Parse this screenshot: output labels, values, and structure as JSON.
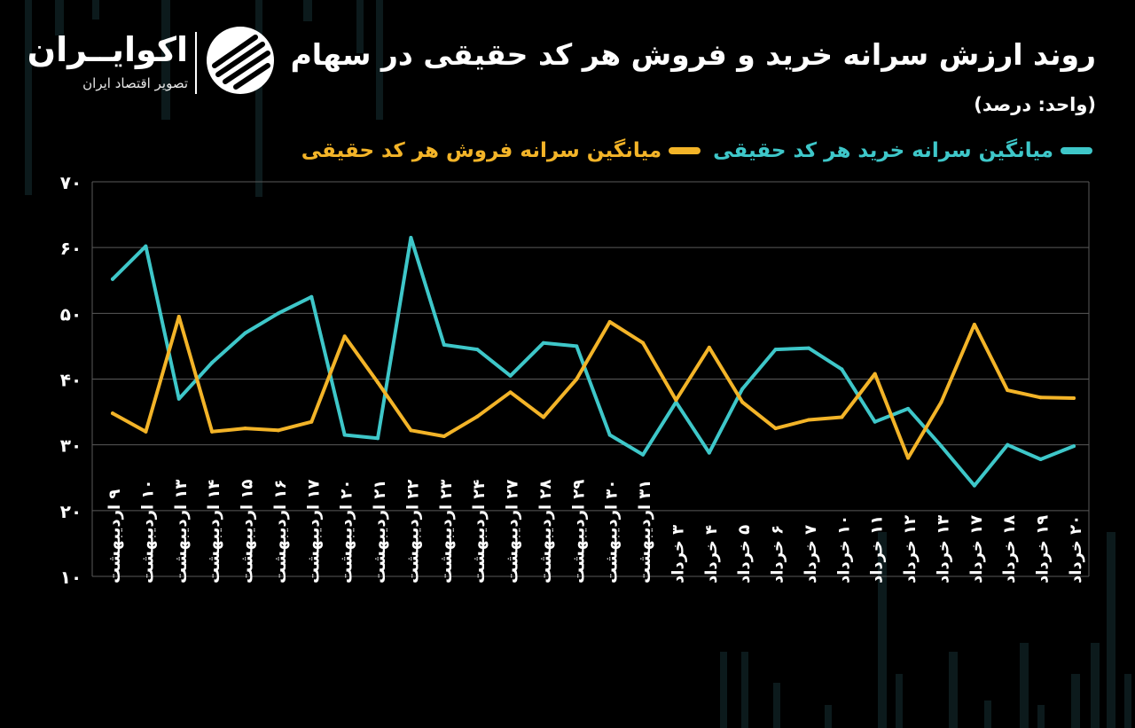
{
  "header": {
    "title": "روند ارزش سرانه خرید و فروش هر کد حقیقی در سهام",
    "unit": "(واحد: درصد)"
  },
  "brand": {
    "name": "اکوایــران",
    "tagline": "تصویر اقتصاد ایران",
    "logo_icon": "ecoiran-logo-icon"
  },
  "colors": {
    "background": "#000000",
    "buy": "#3ec7c9",
    "sell": "#f3b428",
    "grid": "#5a5a5a",
    "text": "#ffffff"
  },
  "legend": {
    "buy_label": "میانگین سرانه خرید هر کد حقیقی",
    "sell_label": "میانگین سرانه فروش هر کد حقیقی"
  },
  "chart_data": {
    "type": "line",
    "title": "روند ارزش سرانه خرید و فروش هر کد حقیقی در سهام",
    "ylabel": "",
    "xlabel": "",
    "ylim": [
      10,
      70
    ],
    "yticks": [
      "۱۰",
      "۲۰",
      "۳۰",
      "۴۰",
      "۵۰",
      "۶۰",
      "۷۰"
    ],
    "grid": true,
    "legend_position": "top",
    "categories": [
      "۹ اردیبهشت",
      "۱۰ اردیبهشت",
      "۱۳ اردیبهشت",
      "۱۴ اردیبهشت",
      "۱۵ اردیبهشت",
      "۱۶ اردیبهشت",
      "۱۷ اردیبهشت",
      "۲۰ اردیبهشت",
      "۲۱ اردیبهشت",
      "۲۲ اردیبهشت",
      "۲۳ اردیبهشت",
      "۲۴ اردیبهشت",
      "۲۷ اردیبهشت",
      "۲۸ اردیبهشت",
      "۲۹ اردیبهشت",
      "۳۰ اردیبهشت",
      "۳۱ اردیبهشت",
      "۳ خرداد",
      "۴ خرداد",
      "۵ خرداد",
      "۶ خرداد",
      "۷ خرداد",
      "۱۰ خرداد",
      "۱۱ خرداد",
      "۱۲ خرداد",
      "۱۳ خرداد",
      "۱۷ خرداد",
      "۱۸ خرداد",
      "۱۹ خرداد",
      "۲۰ خرداد"
    ],
    "series": [
      {
        "name": "میانگین سرانه خرید هر کد حقیقی",
        "color": "#3ec7c9",
        "values": [
          55.2,
          60.2,
          37.0,
          42.5,
          47.0,
          50.0,
          52.5,
          31.5,
          31.0,
          61.5,
          45.2,
          44.5,
          40.5,
          45.5,
          45.0,
          31.5,
          28.5,
          36.5,
          28.8,
          38.5,
          44.5,
          44.7,
          41.5,
          33.5,
          35.5,
          29.8,
          23.8,
          30.0,
          27.8,
          29.8
        ]
      },
      {
        "name": "میانگین سرانه فروش هر کد حقیقی",
        "color": "#f3b428",
        "values": [
          34.8,
          32.0,
          49.5,
          32.0,
          32.5,
          32.2,
          33.5,
          46.5,
          39.5,
          32.2,
          31.3,
          34.3,
          38.0,
          34.2,
          40.0,
          48.7,
          45.5,
          36.8,
          44.8,
          36.5,
          32.5,
          33.8,
          34.2,
          40.8,
          28.0,
          36.5,
          48.3,
          38.3,
          37.2,
          37.1
        ]
      }
    ]
  }
}
